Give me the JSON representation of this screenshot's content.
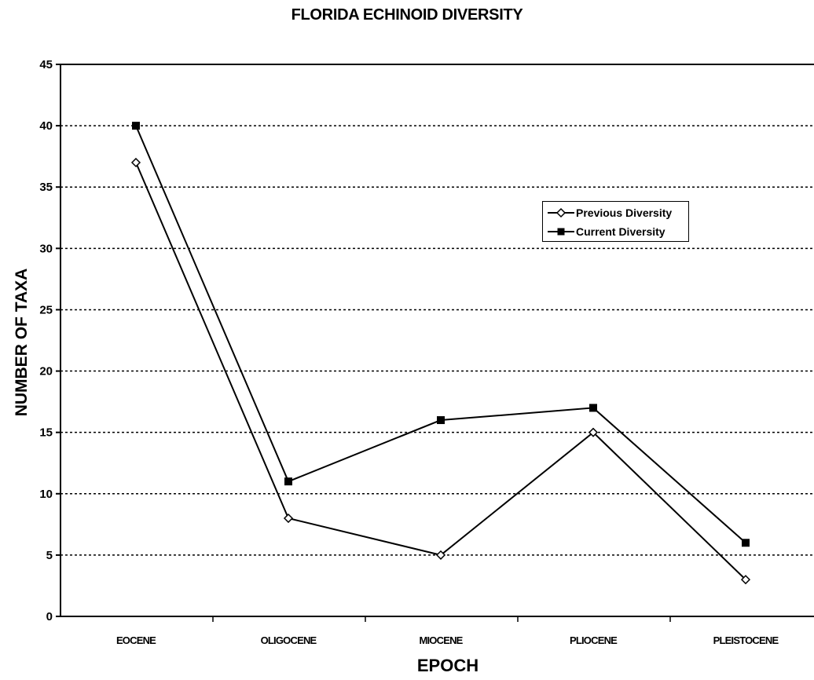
{
  "chart_data": {
    "type": "line",
    "title": "FLORIDA ECHINOID DIVERSITY",
    "xlabel": "EPOCH",
    "ylabel": "NUMBER OF TAXA",
    "categories": [
      "EOCENE",
      "OLIGOCENE",
      "MIOCENE",
      "PLIOCENE",
      "PLEISTOCENE"
    ],
    "ylim": [
      0,
      45
    ],
    "yticks": [
      0,
      5,
      10,
      15,
      20,
      25,
      30,
      35,
      40,
      45
    ],
    "grid": "horizontal dotted",
    "legend_position": "upper-right",
    "series": [
      {
        "name": "Previous Diversity",
        "marker": "open-diamond",
        "values": [
          37,
          8,
          5,
          15,
          3
        ]
      },
      {
        "name": "Current Diversity",
        "marker": "filled-square",
        "values": [
          40,
          11,
          16,
          17,
          6
        ]
      }
    ]
  }
}
